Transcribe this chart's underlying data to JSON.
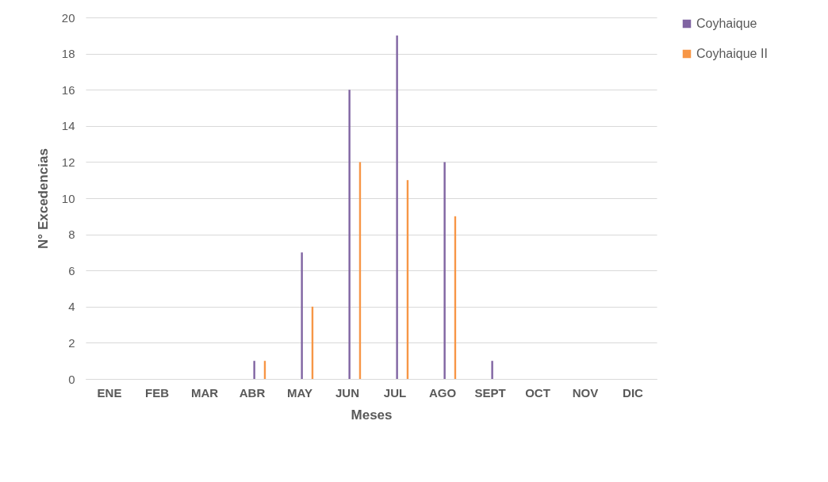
{
  "chart_data": {
    "type": "bar",
    "xlabel": "Meses",
    "ylabel": "N° Excedencias",
    "categories": [
      "ENE",
      "FEB",
      "MAR",
      "ABR",
      "MAY",
      "JUN",
      "JUL",
      "AGO",
      "SEPT",
      "OCT",
      "NOV",
      "DIC"
    ],
    "series": [
      {
        "name": "Coyhaique",
        "color": "#8064a2",
        "values": [
          0,
          0,
          0,
          1,
          7,
          16,
          19,
          12,
          1,
          0,
          0,
          0
        ]
      },
      {
        "name": "Coyhaique II",
        "color": "#f79646",
        "values": [
          0,
          0,
          0,
          1,
          4,
          12,
          11,
          9,
          0,
          0,
          0,
          0
        ]
      }
    ],
    "ylim": [
      0,
      20
    ],
    "yticks": [
      0,
      2,
      4,
      6,
      8,
      10,
      12,
      14,
      16,
      18,
      20
    ],
    "grid": "y",
    "legend": "right"
  }
}
